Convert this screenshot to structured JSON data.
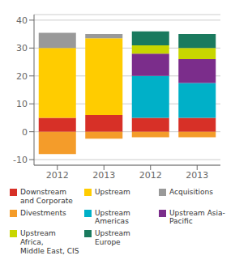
{
  "chart_data": {
    "type": "bar",
    "stacked": true,
    "grid": true,
    "categories": [
      "2012",
      "2013",
      "2012",
      "2013"
    ],
    "series": [
      {
        "name": "Downstream\nand Corporate",
        "color": "#d73027",
        "values": [
          5.0,
          6.0,
          5.0,
          5.0
        ]
      },
      {
        "name": "Upstream",
        "color": "#ffcc00",
        "values": [
          25.0,
          27.5,
          null,
          null
        ]
      },
      {
        "name": "Acquisitions",
        "color": "#999999",
        "values": [
          5.5,
          1.5,
          null,
          null
        ]
      },
      {
        "name": "Divestments",
        "color": "#f49c2a",
        "values": [
          -8.0,
          -2.5,
          -2.0,
          -2.0
        ]
      },
      {
        "name": "Upstream\nAmericas",
        "color": "#00b0c8",
        "values": [
          null,
          null,
          15.0,
          12.5
        ]
      },
      {
        "name": "Upstream Asia-Pacific",
        "color": "#7b2d8b",
        "values": [
          null,
          null,
          8.0,
          8.5
        ]
      },
      {
        "name": "Upstream Africa,\nMiddle East, CIS",
        "color": "#c8d600",
        "values": [
          null,
          null,
          3.0,
          4.0
        ]
      },
      {
        "name": "Upstream Europe",
        "color": "#1a7a5e",
        "values": [
          null,
          null,
          5.0,
          5.0
        ]
      }
    ],
    "ylim": [
      -12,
      42
    ],
    "yticks": [
      -10,
      0,
      10,
      20,
      30,
      40
    ]
  }
}
